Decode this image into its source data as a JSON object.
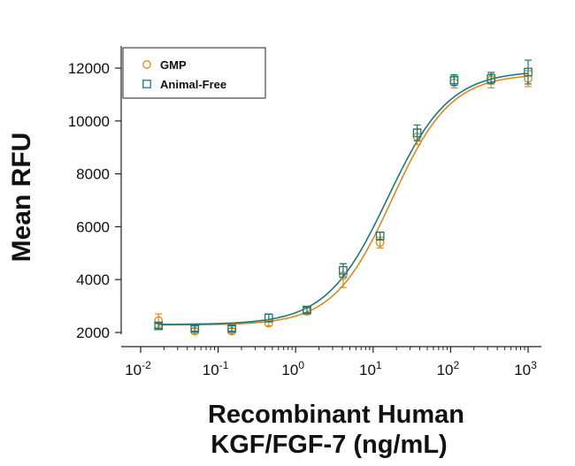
{
  "chart_data": {
    "type": "scatter",
    "xscale": "log",
    "xlim": [
      0.01,
      1000
    ],
    "ylim": [
      1800,
      12600
    ],
    "xlabel_line1": "Recombinant Human",
    "xlabel_line2": "KGF/FGF-7 (ng/mL)",
    "ylabel": "Mean RFU",
    "x_ticks": [
      {
        "base": "10",
        "exp": "-2",
        "value": 0.01
      },
      {
        "base": "10",
        "exp": "-1",
        "value": 0.1
      },
      {
        "base": "10",
        "exp": "0",
        "value": 1
      },
      {
        "base": "10",
        "exp": "1",
        "value": 10
      },
      {
        "base": "10",
        "exp": "2",
        "value": 100
      },
      {
        "base": "10",
        "exp": "3",
        "value": 1000
      }
    ],
    "y_ticks": [
      "2000",
      "4000",
      "6000",
      "8000",
      "10000",
      "12000"
    ],
    "legend_position": "top-left",
    "series": [
      {
        "name": "GMP",
        "color": "#d98a1e",
        "marker": "circle",
        "x": [
          0.017,
          0.05,
          0.15,
          0.45,
          1.4,
          4.1,
          12.3,
          37,
          111,
          333,
          1000
        ],
        "y": [
          2450,
          2050,
          2050,
          2350,
          2800,
          4150,
          5400,
          9400,
          11450,
          11550,
          11600
        ],
        "err": [
          250,
          100,
          100,
          100,
          120,
          450,
          200,
          300,
          200,
          300,
          300
        ],
        "fit": {
          "bottom": 2280,
          "top": 11780,
          "ec50": 17.5,
          "hill": 1.15
        }
      },
      {
        "name": "Animal-Free",
        "color": "#1e7878",
        "marker": "square",
        "x": [
          0.017,
          0.05,
          0.15,
          0.45,
          1.4,
          4.1,
          12.3,
          37,
          111,
          333,
          1000
        ],
        "y": [
          2250,
          2150,
          2150,
          2550,
          2850,
          4350,
          5650,
          9550,
          11550,
          11600,
          11850
        ],
        "err": [
          100,
          100,
          100,
          150,
          100,
          250,
          150,
          300,
          200,
          200,
          450
        ],
        "fit": {
          "bottom": 2300,
          "top": 11900,
          "ec50": 15.5,
          "hill": 1.1
        }
      }
    ]
  }
}
